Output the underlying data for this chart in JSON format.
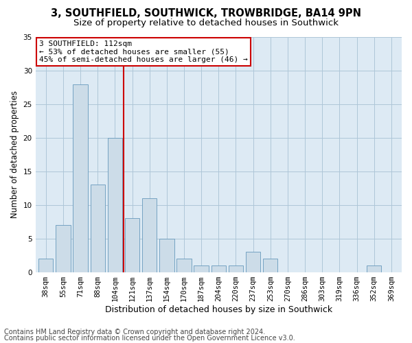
{
  "title": "3, SOUTHFIELD, SOUTHWICK, TROWBRIDGE, BA14 9PN",
  "subtitle": "Size of property relative to detached houses in Southwick",
  "xlabel": "Distribution of detached houses by size in Southwick",
  "ylabel": "Number of detached properties",
  "categories": [
    "38sqm",
    "55sqm",
    "71sqm",
    "88sqm",
    "104sqm",
    "121sqm",
    "137sqm",
    "154sqm",
    "170sqm",
    "187sqm",
    "204sqm",
    "220sqm",
    "237sqm",
    "253sqm",
    "270sqm",
    "286sqm",
    "303sqm",
    "319sqm",
    "336sqm",
    "352sqm",
    "369sqm"
  ],
  "values": [
    2,
    7,
    28,
    13,
    20,
    8,
    11,
    5,
    2,
    1,
    1,
    1,
    3,
    2,
    0,
    0,
    0,
    0,
    0,
    1,
    0
  ],
  "bar_color": "#ccdce8",
  "bar_edge_color": "#6699bb",
  "vline_color": "#cc0000",
  "vline_x": 4.5,
  "annotation_text": "3 SOUTHFIELD: 112sqm\n← 53% of detached houses are smaller (55)\n45% of semi-detached houses are larger (46) →",
  "annotation_box_facecolor": "#ffffff",
  "annotation_box_edgecolor": "#cc0000",
  "ylim": [
    0,
    35
  ],
  "yticks": [
    0,
    5,
    10,
    15,
    20,
    25,
    30,
    35
  ],
  "grid_color": "#aec6d8",
  "bg_color": "#ddeaf4",
  "footer1": "Contains HM Land Registry data © Crown copyright and database right 2024.",
  "footer2": "Contains public sector information licensed under the Open Government Licence v3.0.",
  "title_fontsize": 10.5,
  "subtitle_fontsize": 9.5,
  "xlabel_fontsize": 9,
  "ylabel_fontsize": 8.5,
  "tick_fontsize": 7.5,
  "annot_fontsize": 8,
  "footer_fontsize": 7
}
